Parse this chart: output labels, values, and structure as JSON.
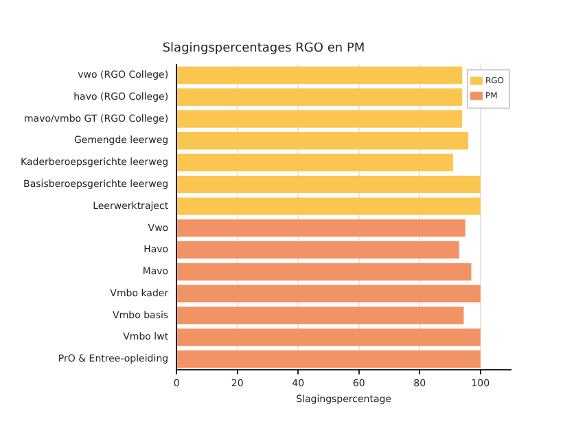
{
  "chart_data": {
    "type": "bar",
    "orientation": "horizontal",
    "title": "Slagingspercentages RGO en PM",
    "xlabel": "Slagingspercentage",
    "categories": [
      "vwo (RGO College)",
      "havo (RGO College)",
      "mavo/vmbo GT (RGO College)",
      "Gemengde leerweg",
      "Kaderberoepsgerichte leerweg",
      "Basisberoepsgerichte leerweg",
      "Leerwerktraject",
      "Vwo",
      "Havo",
      "Mavo",
      "Vmbo kader",
      "Vmbo basis",
      "Vmbo lwt",
      "PrO & Entree-opleiding"
    ],
    "series": [
      {
        "name": "RGO",
        "color": "#fbc650",
        "values": [
          94,
          94,
          94,
          96,
          91,
          100,
          100,
          null,
          null,
          null,
          null,
          null,
          null,
          null
        ]
      },
      {
        "name": "PM",
        "color": "#f29365",
        "values": [
          null,
          null,
          null,
          null,
          null,
          null,
          null,
          95,
          93,
          97,
          100,
          94.5,
          100,
          100
        ]
      }
    ],
    "xlim": [
      0,
      110
    ],
    "xticks": [
      0,
      20,
      40,
      60,
      80,
      100
    ],
    "grid": "x",
    "legend": "top right"
  }
}
